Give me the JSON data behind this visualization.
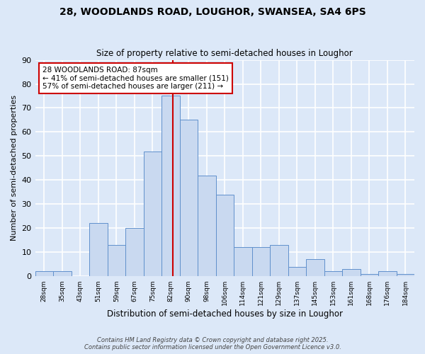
{
  "title1": "28, WOODLANDS ROAD, LOUGHOR, SWANSEA, SA4 6PS",
  "title2": "Size of property relative to semi-detached houses in Loughor",
  "xlabel": "Distribution of semi-detached houses by size in Loughor",
  "ylabel": "Number of semi-detached properties",
  "bin_labels": [
    "28sqm",
    "35sqm",
    "43sqm",
    "51sqm",
    "59sqm",
    "67sqm",
    "75sqm",
    "82sqm",
    "90sqm",
    "98sqm",
    "106sqm",
    "114sqm",
    "121sqm",
    "129sqm",
    "137sqm",
    "145sqm",
    "153sqm",
    "161sqm",
    "168sqm",
    "176sqm",
    "184sqm"
  ],
  "bar_heights": [
    2,
    2,
    0,
    22,
    13,
    20,
    52,
    75,
    65,
    42,
    34,
    12,
    12,
    13,
    4,
    7,
    2,
    3,
    1,
    2,
    1
  ],
  "bar_color": "#c9d9f0",
  "bar_edge_color": "#6090cc",
  "bg_color": "#dce8f8",
  "grid_color": "#ffffff",
  "vline_color": "#cc0000",
  "annotation_text": "28 WOODLANDS ROAD: 87sqm\n← 41% of semi-detached houses are smaller (151)\n57% of semi-detached houses are larger (211) →",
  "annotation_box_color": "#ffffff",
  "annotation_box_edge": "#cc0000",
  "ylim": [
    0,
    90
  ],
  "yticks": [
    0,
    10,
    20,
    30,
    40,
    50,
    60,
    70,
    80,
    90
  ],
  "footer1": "Contains HM Land Registry data © Crown copyright and database right 2025.",
  "footer2": "Contains public sector information licensed under the Open Government Licence v3.0."
}
